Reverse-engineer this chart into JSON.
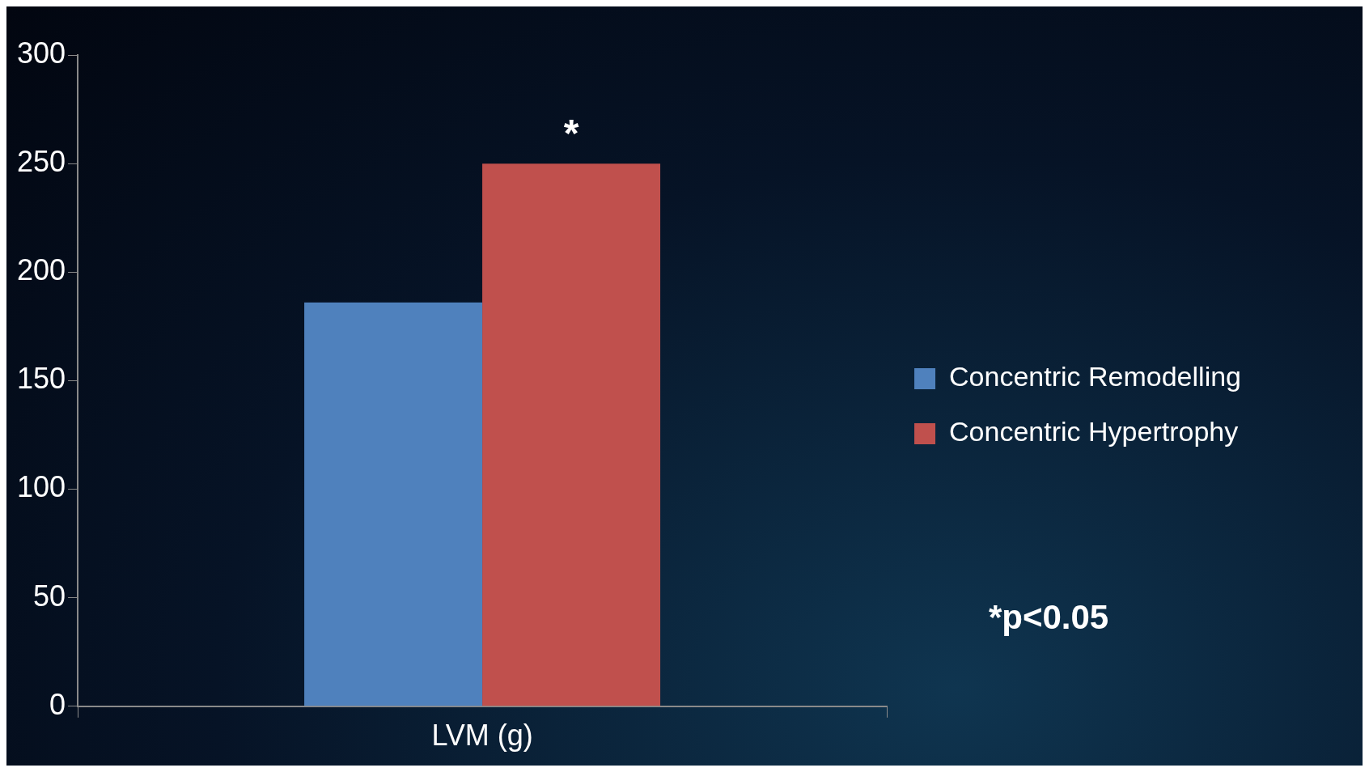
{
  "chart_data": {
    "type": "bar",
    "categories": [
      "LVM (g)"
    ],
    "series": [
      {
        "name": "Concentric Remodelling",
        "color": "#4f81bd",
        "values": [
          186
        ]
      },
      {
        "name": "Concentric Hypertrophy",
        "color": "#c0504d",
        "values": [
          250
        ]
      }
    ],
    "ylim": [
      0,
      300
    ],
    "yticks": [
      0,
      50,
      100,
      150,
      200,
      250,
      300
    ],
    "grid": false,
    "legend": "right",
    "annotations": [
      {
        "text": "*",
        "x": "LVM (g)",
        "y": 250
      },
      "*p<0.05"
    ]
  }
}
